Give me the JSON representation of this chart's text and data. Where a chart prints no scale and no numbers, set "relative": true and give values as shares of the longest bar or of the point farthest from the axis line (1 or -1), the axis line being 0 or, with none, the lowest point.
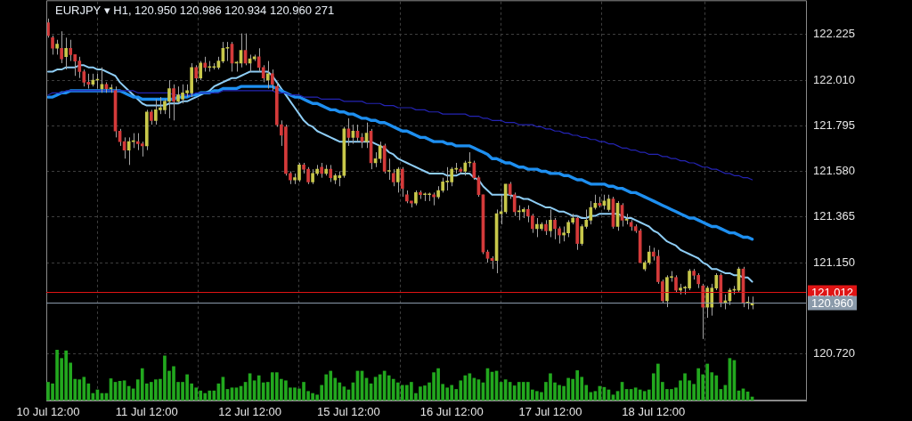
{
  "chart_data": [
    {
      "type": "candlestick",
      "title": "EURJPY ▾ H1, 120.950 120.986 120.934 120.960 271",
      "categories": [
        "10 Jul 12:00",
        null,
        null,
        null,
        null,
        null,
        null,
        null,
        null,
        null,
        null,
        null,
        null,
        null,
        null,
        null,
        null,
        null,
        null,
        null,
        null,
        null,
        "11 Jul 12:00",
        null,
        null,
        null,
        null,
        null,
        null,
        null,
        null,
        null,
        null,
        null,
        null,
        null,
        null,
        null,
        null,
        null,
        null,
        null,
        null,
        null,
        null,
        "12 Jul 12:00",
        null,
        null,
        null,
        null,
        null,
        null,
        null,
        null,
        null,
        null,
        null,
        null,
        null,
        null,
        null,
        null,
        null,
        null,
        null,
        null,
        null,
        "15 Jul 12:00",
        null,
        null,
        null,
        null,
        null,
        null,
        null,
        null,
        null,
        null,
        null,
        null,
        null,
        null,
        null,
        null,
        null,
        null,
        null,
        null,
        null,
        null,
        "16 Jul 12:00",
        null,
        null,
        null,
        null,
        null,
        null,
        null,
        null,
        null,
        null,
        null,
        null,
        null,
        null,
        null,
        null,
        null,
        null,
        null,
        null,
        null,
        "17 Jul 12:00",
        null,
        null,
        null,
        null,
        null,
        null,
        null,
        null,
        null,
        null,
        null,
        null,
        null,
        null,
        null,
        null,
        null,
        null,
        null,
        null,
        null,
        null,
        "18 Jul 12:00",
        null,
        null,
        null,
        null,
        null,
        null,
        null,
        null,
        null,
        null,
        null,
        null,
        null,
        null,
        null,
        null,
        null,
        null,
        null,
        null,
        null,
        null
      ],
      "ohlc": [
        [
          122.28,
          122.3,
          122.21,
          122.22
        ],
        [
          122.21,
          122.22,
          122.13,
          122.16
        ],
        [
          122.16,
          122.2,
          122.13,
          122.18
        ],
        [
          122.16,
          122.24,
          122.09,
          122.11
        ],
        [
          122.12,
          122.21,
          122.06,
          122.16
        ],
        [
          122.16,
          122.2,
          122.1,
          122.13
        ],
        [
          122.13,
          122.13,
          122.03,
          122.1
        ],
        [
          122.1,
          122.12,
          122.02,
          122.05
        ],
        [
          122.05,
          122.06,
          121.98,
          122.0
        ],
        [
          122.0,
          122.04,
          121.97,
          121.99
        ],
        [
          121.99,
          122.04,
          121.98,
          122.01
        ],
        [
          122.01,
          122.04,
          121.97,
          122.01
        ],
        [
          121.97,
          122.07,
          121.95,
          121.99
        ],
        [
          121.99,
          122.0,
          121.95,
          121.97
        ],
        [
          121.97,
          121.99,
          121.95,
          121.97
        ],
        [
          121.96,
          121.98,
          121.74,
          121.77
        ],
        [
          121.77,
          121.78,
          121.7,
          121.72
        ],
        [
          121.72,
          121.74,
          121.64,
          121.68
        ],
        [
          121.68,
          121.74,
          121.61,
          121.72
        ],
        [
          121.72,
          121.76,
          121.69,
          121.72
        ],
        [
          121.72,
          121.76,
          121.68,
          121.71
        ],
        [
          121.71,
          121.72,
          121.65,
          121.7
        ],
        [
          121.7,
          121.87,
          121.68,
          121.86
        ],
        [
          121.86,
          121.87,
          121.8,
          121.82
        ],
        [
          121.82,
          121.92,
          121.8,
          121.87
        ],
        [
          121.87,
          121.93,
          121.85,
          121.88
        ],
        [
          121.87,
          121.92,
          121.85,
          121.91
        ],
        [
          121.91,
          122.01,
          121.83,
          121.97
        ],
        [
          121.97,
          121.99,
          121.82,
          121.91
        ],
        [
          121.91,
          121.98,
          121.9,
          121.94
        ],
        [
          121.92,
          121.99,
          121.9,
          121.95
        ],
        [
          121.95,
          121.99,
          121.93,
          121.96
        ],
        [
          121.95,
          122.09,
          121.93,
          122.07
        ],
        [
          122.07,
          122.08,
          122.0,
          122.02
        ],
        [
          122.02,
          122.1,
          122.01,
          122.09
        ],
        [
          122.09,
          122.12,
          122.05,
          122.07
        ],
        [
          122.07,
          122.1,
          122.05,
          122.07
        ],
        [
          122.07,
          122.09,
          122.06,
          122.07
        ],
        [
          122.07,
          122.12,
          122.06,
          122.1
        ],
        [
          122.1,
          122.19,
          122.09,
          122.16
        ],
        [
          122.16,
          122.19,
          122.1,
          122.16
        ],
        [
          122.18,
          122.19,
          122.05,
          122.09
        ],
        [
          122.09,
          122.1,
          122.05,
          122.09
        ],
        [
          122.09,
          122.23,
          122.07,
          122.15
        ],
        [
          122.15,
          122.23,
          122.08,
          122.09
        ],
        [
          122.09,
          122.13,
          122.05,
          122.11
        ],
        [
          122.11,
          122.13,
          122.1,
          122.12
        ],
        [
          122.12,
          122.16,
          122.05,
          122.07
        ],
        [
          122.07,
          122.08,
          122.0,
          122.02
        ],
        [
          122.01,
          122.1,
          121.97,
          122.04
        ],
        [
          122.04,
          122.06,
          121.96,
          121.99
        ],
        [
          121.98,
          122.0,
          121.79,
          121.8
        ],
        [
          121.8,
          121.82,
          121.7,
          121.75
        ],
        [
          121.79,
          121.8,
          121.56,
          121.57
        ],
        [
          121.57,
          121.58,
          121.52,
          121.54
        ],
        [
          121.54,
          121.57,
          121.52,
          121.55
        ],
        [
          121.54,
          121.62,
          121.53,
          121.61
        ],
        [
          121.61,
          121.62,
          121.57,
          121.59
        ],
        [
          121.59,
          121.6,
          121.52,
          121.53
        ],
        [
          121.53,
          121.59,
          121.52,
          121.57
        ],
        [
          121.57,
          121.61,
          121.56,
          121.59
        ],
        [
          121.6,
          121.62,
          121.55,
          121.57
        ],
        [
          121.57,
          121.61,
          121.56,
          121.59
        ],
        [
          121.59,
          121.61,
          121.53,
          121.55
        ],
        [
          121.54,
          121.57,
          121.52,
          121.56
        ],
        [
          121.55,
          121.58,
          121.51,
          121.56
        ],
        [
          121.56,
          121.79,
          121.55,
          121.78
        ],
        [
          121.78,
          121.83,
          121.7,
          121.74
        ],
        [
          121.74,
          121.8,
          121.71,
          121.77
        ],
        [
          121.77,
          121.8,
          121.72,
          121.74
        ],
        [
          121.74,
          121.76,
          121.69,
          121.72
        ],
        [
          121.72,
          121.81,
          121.69,
          121.76
        ],
        [
          121.77,
          121.78,
          121.59,
          121.62
        ],
        [
          121.62,
          121.67,
          121.6,
          121.64
        ],
        [
          121.64,
          121.72,
          121.62,
          121.7
        ],
        [
          121.7,
          121.71,
          121.57,
          121.58
        ],
        [
          121.58,
          121.64,
          121.54,
          121.58
        ],
        [
          121.57,
          121.59,
          121.51,
          121.53
        ],
        [
          121.53,
          121.6,
          121.48,
          121.59
        ],
        [
          121.59,
          121.6,
          121.46,
          121.5
        ],
        [
          121.47,
          121.49,
          121.43,
          121.44
        ],
        [
          121.44,
          121.44,
          121.41,
          121.43
        ],
        [
          121.43,
          121.49,
          121.42,
          121.48
        ],
        [
          121.48,
          121.49,
          121.45,
          121.47
        ],
        [
          121.47,
          121.48,
          121.44,
          121.47
        ],
        [
          121.47,
          121.48,
          121.44,
          121.47
        ],
        [
          121.47,
          121.48,
          121.42,
          121.46
        ],
        [
          121.46,
          121.51,
          121.45,
          121.49
        ],
        [
          121.49,
          121.55,
          121.48,
          121.53
        ],
        [
          121.53,
          121.6,
          121.49,
          121.53
        ],
        [
          121.53,
          121.6,
          121.51,
          121.59
        ],
        [
          121.59,
          121.62,
          121.57,
          121.59
        ],
        [
          121.59,
          121.6,
          121.57,
          121.58
        ],
        [
          121.58,
          121.63,
          121.56,
          121.62
        ],
        [
          121.62,
          121.67,
          121.6,
          121.62
        ],
        [
          121.62,
          121.63,
          121.54,
          121.55
        ],
        [
          121.55,
          121.56,
          121.46,
          121.47
        ],
        [
          121.47,
          121.47,
          121.19,
          121.2
        ],
        [
          121.2,
          121.21,
          121.15,
          121.17
        ],
        [
          121.17,
          121.18,
          121.12,
          121.16
        ],
        [
          121.16,
          121.4,
          121.1,
          121.38
        ],
        [
          121.38,
          121.47,
          121.33,
          121.39
        ],
        [
          121.39,
          121.52,
          121.38,
          121.52
        ],
        [
          121.52,
          121.53,
          121.45,
          121.47
        ],
        [
          121.47,
          121.48,
          121.37,
          121.39
        ],
        [
          121.39,
          121.42,
          121.35,
          121.39
        ],
        [
          121.39,
          121.41,
          121.36,
          121.4
        ],
        [
          121.4,
          121.42,
          121.34,
          121.37
        ],
        [
          121.37,
          121.38,
          121.29,
          121.31
        ],
        [
          121.31,
          121.36,
          121.27,
          121.33
        ],
        [
          121.31,
          121.34,
          121.3,
          121.33
        ],
        [
          121.33,
          121.35,
          121.28,
          121.3
        ],
        [
          121.3,
          121.4,
          121.27,
          121.35
        ],
        [
          121.35,
          121.36,
          121.26,
          121.31
        ],
        [
          121.31,
          121.32,
          121.24,
          121.28
        ],
        [
          121.28,
          121.32,
          121.25,
          121.29
        ],
        [
          121.29,
          121.35,
          121.27,
          121.34
        ],
        [
          121.34,
          121.38,
          121.33,
          121.36
        ],
        [
          121.36,
          121.37,
          121.21,
          121.24
        ],
        [
          121.24,
          121.33,
          121.23,
          121.32
        ],
        [
          121.32,
          121.4,
          121.31,
          121.35
        ],
        [
          121.35,
          121.44,
          121.33,
          121.41
        ],
        [
          121.41,
          121.47,
          121.4,
          121.43
        ],
        [
          121.43,
          121.46,
          121.41,
          121.42
        ],
        [
          121.42,
          121.47,
          121.4,
          121.44
        ],
        [
          121.4,
          121.47,
          121.39,
          121.45
        ],
        [
          121.45,
          121.46,
          121.31,
          121.32
        ],
        [
          121.32,
          121.44,
          121.3,
          121.43
        ],
        [
          121.42,
          121.43,
          121.32,
          121.35
        ],
        [
          121.35,
          121.38,
          121.33,
          121.35
        ],
        [
          121.34,
          121.35,
          121.3,
          121.32
        ],
        [
          121.32,
          121.33,
          121.29,
          121.3
        ],
        [
          121.3,
          121.31,
          121.15,
          121.15
        ],
        [
          121.12,
          121.16,
          121.11,
          121.15
        ],
        [
          121.15,
          121.23,
          121.14,
          121.2
        ],
        [
          121.2,
          121.22,
          121.16,
          121.18
        ],
        [
          121.18,
          121.21,
          121.05,
          121.06
        ],
        [
          121.06,
          121.07,
          120.96,
          120.97
        ],
        [
          120.97,
          121.09,
          120.94,
          121.08
        ],
        [
          121.08,
          121.11,
          121.06,
          121.08
        ],
        [
          121.08,
          121.09,
          121.01,
          121.02
        ],
        [
          121.02,
          121.05,
          121.0,
          121.03
        ],
        [
          121.03,
          121.04,
          121.0,
          121.03
        ],
        [
          121.03,
          121.12,
          121.02,
          121.11
        ],
        [
          121.11,
          121.12,
          121.07,
          121.09
        ],
        [
          121.09,
          121.1,
          121.03,
          121.05
        ],
        [
          121.04,
          121.05,
          120.79,
          120.94
        ],
        [
          120.94,
          121.04,
          120.89,
          121.03
        ],
        [
          120.94,
          121.05,
          120.9,
          121.03
        ],
        [
          121.03,
          121.1,
          121.02,
          121.09
        ],
        [
          121.09,
          121.1,
          120.94,
          120.96
        ],
        [
          120.96,
          121.0,
          120.93,
          120.97
        ],
        [
          120.97,
          121.03,
          120.95,
          121.02
        ],
        [
          121.02,
          121.04,
          121.0,
          121.02
        ],
        [
          121.02,
          121.13,
          121.01,
          121.12
        ],
        [
          121.12,
          121.13,
          120.94,
          120.96
        ],
        [
          120.96,
          120.99,
          120.93,
          120.96
        ],
        [
          120.95,
          120.99,
          120.93,
          120.96
        ]
      ],
      "colors": [
        "#d43a3a",
        "#d43a3a",
        "#c8c84a",
        "#d43a3a",
        "#c8c84a",
        "#d43a3a",
        "#d43a3a",
        "#d43a3a",
        "#d43a3a",
        "#d43a3a",
        "#c8c84a",
        "#c8c84a",
        "#c8c84a",
        "#d43a3a",
        "#c8c84a",
        "#d43a3a",
        "#d43a3a",
        "#d43a3a",
        "#c8c84a",
        "#c8c84a",
        "#d43a3a",
        "#d43a3a",
        "#c8c84a",
        "#d43a3a",
        "#c8c84a",
        "#c8c84a",
        "#c8c84a",
        "#c8c84a",
        "#d43a3a",
        "#c8c84a",
        "#c8c84a",
        "#c8c84a",
        "#c8c84a",
        "#d43a3a",
        "#c8c84a",
        "#d43a3a",
        "#c8c84a",
        "#c8c84a",
        "#c8c84a",
        "#c8c84a",
        "#c8c84a",
        "#d43a3a",
        "#c8c84a",
        "#c8c84a",
        "#d43a3a",
        "#c8c84a",
        "#c8c84a",
        "#d43a3a",
        "#d43a3a",
        "#c8c84a",
        "#d43a3a",
        "#d43a3a",
        "#d43a3a",
        "#d43a3a",
        "#d43a3a",
        "#c8c84a",
        "#c8c84a",
        "#d43a3a",
        "#d43a3a",
        "#c8c84a",
        "#c8c84a",
        "#d43a3a",
        "#c8c84a",
        "#d43a3a",
        "#c8c84a",
        "#c8c84a",
        "#c8c84a",
        "#d43a3a",
        "#c8c84a",
        "#d43a3a",
        "#d43a3a",
        "#c8c84a",
        "#d43a3a",
        "#c8c84a",
        "#c8c84a",
        "#d43a3a",
        "#c8c84a",
        "#d43a3a",
        "#c8c84a",
        "#d43a3a",
        "#d43a3a",
        "#d43a3a",
        "#c8c84a",
        "#d43a3a",
        "#c8c84a",
        "#c8c84a",
        "#d43a3a",
        "#c8c84a",
        "#c8c84a",
        "#c8c84a",
        "#c8c84a",
        "#c8c84a",
        "#d43a3a",
        "#c8c84a",
        "#c8c84a",
        "#d43a3a",
        "#d43a3a",
        "#d43a3a",
        "#d43a3a",
        "#d43a3a",
        "#c8c84a",
        "#c8c84a",
        "#c8c84a",
        "#d43a3a",
        "#d43a3a",
        "#c8c84a",
        "#c8c84a",
        "#d43a3a",
        "#d43a3a",
        "#c8c84a",
        "#c8c84a",
        "#d43a3a",
        "#c8c84a",
        "#d43a3a",
        "#d43a3a",
        "#c8c84a",
        "#c8c84a",
        "#c8c84a",
        "#d43a3a",
        "#c8c84a",
        "#c8c84a",
        "#c8c84a",
        "#c8c84a",
        "#d43a3a",
        "#c8c84a",
        "#c8c84a",
        "#d43a3a",
        "#c8c84a",
        "#d43a3a",
        "#c8c84a",
        "#d43a3a",
        "#d43a3a",
        "#d43a3a",
        "#c8c84a",
        "#c8c84a",
        "#d43a3a",
        "#d43a3a",
        "#d43a3a",
        "#c8c84a",
        "#c8c84a",
        "#d43a3a",
        "#c8c84a",
        "#c8c84a",
        "#c8c84a",
        "#d43a3a",
        "#d43a3a",
        "#d43a3a",
        "#c8c84a",
        "#c8c84a",
        "#c8c84a",
        "#d43a3a",
        "#c8c84a",
        "#c8c84a",
        "#c8c84a",
        "#c8c84a",
        "#d43a3a",
        "#c8c84a",
        "#c8c84a"
      ],
      "series": [
        {
          "type": "line",
          "color": "#8ecdf5",
          "values": [
            122.05,
            122.05,
            122.06,
            122.06,
            122.07,
            122.07,
            122.07,
            122.08,
            122.08,
            122.07,
            122.07,
            122.06,
            122.06,
            122.05,
            122.04,
            122.03,
            122.0,
            121.98,
            121.96,
            121.94,
            121.92,
            121.9,
            121.89,
            121.89,
            121.89,
            121.89,
            121.89,
            121.9,
            121.9,
            121.9,
            121.91,
            121.91,
            121.92,
            121.93,
            121.94,
            121.95,
            121.96,
            121.98,
            121.99,
            122.0,
            122.01,
            122.02,
            122.02,
            122.03,
            122.04,
            122.05,
            122.05,
            122.05,
            122.05,
            122.05,
            122.03,
            122.0,
            121.97,
            121.94,
            121.91,
            121.88,
            121.85,
            121.82,
            121.8,
            121.79,
            121.77,
            121.76,
            121.75,
            121.74,
            121.73,
            121.72,
            121.72,
            121.72,
            121.72,
            121.72,
            121.72,
            121.72,
            121.72,
            121.71,
            121.7,
            121.69,
            121.67,
            121.66,
            121.64,
            121.63,
            121.62,
            121.61,
            121.6,
            121.59,
            121.58,
            121.57,
            121.57,
            121.57,
            121.57,
            121.56,
            121.56,
            121.56,
            121.57,
            121.57,
            121.57,
            121.55,
            121.54,
            121.51,
            121.49,
            121.47,
            121.47,
            121.47,
            121.47,
            121.47,
            121.46,
            121.46,
            121.45,
            121.45,
            121.44,
            121.43,
            121.42,
            121.41,
            121.41,
            121.4,
            121.39,
            121.39,
            121.38,
            121.37,
            121.37,
            121.36,
            121.36,
            121.37,
            121.37,
            121.38,
            121.38,
            121.38,
            121.38,
            121.38,
            121.37,
            121.36,
            121.36,
            121.35,
            121.34,
            121.33,
            121.32,
            121.3,
            121.29,
            121.27,
            121.25,
            121.24,
            121.23,
            121.21,
            121.2,
            121.19,
            121.18,
            121.17,
            121.15,
            121.14,
            121.12,
            121.12,
            121.11,
            121.1,
            121.1,
            121.09,
            121.09,
            121.08,
            121.08,
            121.06
          ]
        },
        {
          "type": "line",
          "color": "#1e8ff0",
          "values": [
            121.93,
            121.93,
            121.94,
            121.95,
            121.95,
            121.96,
            121.96,
            121.96,
            121.96,
            121.96,
            121.96,
            121.96,
            121.96,
            121.96,
            121.96,
            121.96,
            121.96,
            121.95,
            121.94,
            121.93,
            121.93,
            121.92,
            121.92,
            121.92,
            121.92,
            121.92,
            121.92,
            121.92,
            121.92,
            121.93,
            121.93,
            121.93,
            121.94,
            121.94,
            121.95,
            121.95,
            121.95,
            121.96,
            121.96,
            121.97,
            121.97,
            121.97,
            121.97,
            121.98,
            121.98,
            121.98,
            121.98,
            121.98,
            121.98,
            121.98,
            121.98,
            121.97,
            121.96,
            121.95,
            121.94,
            121.93,
            121.93,
            121.92,
            121.91,
            121.9,
            121.9,
            121.89,
            121.88,
            121.87,
            121.87,
            121.86,
            121.86,
            121.85,
            121.85,
            121.84,
            121.83,
            121.83,
            121.82,
            121.82,
            121.81,
            121.81,
            121.8,
            121.79,
            121.78,
            121.77,
            121.77,
            121.76,
            121.75,
            121.74,
            121.74,
            121.73,
            121.72,
            121.72,
            121.72,
            121.71,
            121.71,
            121.7,
            121.7,
            121.7,
            121.7,
            121.69,
            121.68,
            121.67,
            121.66,
            121.64,
            121.64,
            121.63,
            121.62,
            121.62,
            121.61,
            121.6,
            121.6,
            121.59,
            121.59,
            121.59,
            121.58,
            121.58,
            121.57,
            121.57,
            121.57,
            121.56,
            121.56,
            121.55,
            121.54,
            121.54,
            121.53,
            121.52,
            121.52,
            121.52,
            121.52,
            121.51,
            121.51,
            121.5,
            121.5,
            121.49,
            121.48,
            121.48,
            121.47,
            121.46,
            121.45,
            121.44,
            121.43,
            121.42,
            121.41,
            121.4,
            121.39,
            121.38,
            121.37,
            121.36,
            121.36,
            121.35,
            121.34,
            121.33,
            121.32,
            121.32,
            121.31,
            121.3,
            121.29,
            121.29,
            121.28,
            121.27,
            121.27,
            121.26
          ]
        },
        {
          "type": "line",
          "color": "#2424b4",
          "values": [
            121.94,
            121.95,
            121.95,
            121.95,
            121.96,
            121.96,
            121.96,
            121.96,
            121.96,
            121.96,
            121.96,
            121.96,
            121.96,
            121.96,
            121.96,
            121.96,
            121.96,
            121.96,
            121.96,
            121.96,
            121.95,
            121.95,
            121.95,
            121.95,
            121.95,
            121.95,
            121.95,
            121.95,
            121.94,
            121.94,
            121.94,
            121.94,
            121.94,
            121.95,
            121.95,
            121.95,
            121.95,
            121.95,
            121.95,
            121.96,
            121.96,
            121.96,
            121.96,
            121.96,
            121.96,
            121.96,
            121.96,
            121.96,
            121.96,
            121.96,
            121.96,
            121.95,
            121.95,
            121.95,
            121.94,
            121.94,
            121.94,
            121.93,
            121.93,
            121.93,
            121.93,
            121.92,
            121.92,
            121.92,
            121.92,
            121.92,
            121.91,
            121.91,
            121.91,
            121.91,
            121.91,
            121.9,
            121.9,
            121.9,
            121.9,
            121.89,
            121.89,
            121.89,
            121.88,
            121.88,
            121.88,
            121.88,
            121.87,
            121.87,
            121.87,
            121.86,
            121.86,
            121.86,
            121.85,
            121.85,
            121.85,
            121.85,
            121.85,
            121.85,
            121.84,
            121.84,
            121.84,
            121.83,
            121.83,
            121.82,
            121.82,
            121.82,
            121.81,
            121.81,
            121.81,
            121.8,
            121.8,
            121.8,
            121.8,
            121.79,
            121.79,
            121.78,
            121.78,
            121.77,
            121.77,
            121.76,
            121.76,
            121.75,
            121.75,
            121.74,
            121.74,
            121.73,
            121.73,
            121.72,
            121.72,
            121.71,
            121.71,
            121.7,
            121.69,
            121.69,
            121.68,
            121.68,
            121.67,
            121.67,
            121.66,
            121.66,
            121.66,
            121.65,
            121.65,
            121.64,
            121.64,
            121.63,
            121.63,
            121.62,
            121.62,
            121.61,
            121.6,
            121.6,
            121.59,
            121.59,
            121.58,
            121.57,
            121.57,
            121.56,
            121.56,
            121.55,
            121.55,
            121.54
          ]
        }
      ],
      "ylim": [
        120.5,
        122.38
      ],
      "yticks": [
        {
          "value": 120.72,
          "label": "120.720"
        },
        {
          "value": 121.15,
          "label": "121.150"
        },
        121.365,
        {
          "value": 121.58,
          "label": "121.580"
        },
        121.795,
        {
          "value": 122.01,
          "label": "122.010"
        },
        122.225
      ],
      "grid": true,
      "ref_lines": [
        {
          "axis": "y",
          "value": 121.012,
          "label": "121.012",
          "color": "#e01414"
        },
        {
          "axis": "y",
          "value": 120.96,
          "label": "120.960",
          "color": "#8a9aaa"
        }
      ]
    },
    {
      "type": "bar",
      "relative": true,
      "color": "#22a81e",
      "categories": [
        null,
        null,
        null,
        null,
        null,
        null,
        null,
        null,
        null,
        null,
        null,
        null,
        null,
        null,
        null,
        null,
        null,
        null,
        null,
        null,
        null,
        null,
        null,
        null,
        null,
        null,
        null,
        null,
        null,
        null,
        null,
        null,
        null,
        null,
        null,
        null,
        null,
        null,
        null,
        null,
        null,
        null,
        null,
        null,
        null,
        null,
        null,
        null,
        null,
        null,
        null,
        null,
        null,
        null,
        null,
        null,
        null,
        null,
        null,
        null,
        null,
        null,
        null,
        null,
        null,
        null,
        null,
        null,
        null,
        null,
        null,
        null,
        null,
        null,
        null,
        null,
        null,
        null,
        null,
        null,
        null,
        null,
        null,
        null,
        null,
        null,
        null,
        null,
        null,
        null,
        null,
        null,
        null,
        null,
        null,
        null,
        null,
        null,
        null,
        null,
        null,
        null,
        null,
        null,
        null,
        null,
        null,
        null,
        null,
        null,
        null,
        null,
        null,
        null,
        null,
        null,
        null,
        null,
        null,
        null,
        null,
        null,
        null,
        null,
        null,
        null,
        null,
        null,
        null,
        null,
        null,
        null,
        null,
        null,
        null,
        null,
        null,
        null,
        null,
        null,
        null,
        null,
        null,
        null,
        null,
        null,
        null,
        null,
        null,
        null,
        null,
        null,
        null,
        null,
        null,
        null,
        null,
        null
      ],
      "values": [
        0.36,
        0.33,
        1,
        0.83,
        0.98,
        0.74,
        0.42,
        0.41,
        0.46,
        0.33,
        0.14,
        0.21,
        0.14,
        0.14,
        0.43,
        0.36,
        0.38,
        0.39,
        0.28,
        0.23,
        0.41,
        0.63,
        0.33,
        0.36,
        0.41,
        0.42,
        0.88,
        0.58,
        0.67,
        0.36,
        0.36,
        0.51,
        0.33,
        0.25,
        0.19,
        0.14,
        0.19,
        0.19,
        0.33,
        0.46,
        0.22,
        0.25,
        0.25,
        0.28,
        0.36,
        0.53,
        0.39,
        0.49,
        0.35,
        0.36,
        0.55,
        0.55,
        0.42,
        0.39,
        0.25,
        0.25,
        0.23,
        0.36,
        0.18,
        0.14,
        0.11,
        0.3,
        0.51,
        0.58,
        0.44,
        0.35,
        0.27,
        0.21,
        0.35,
        0.58,
        0.58,
        0.44,
        0.33,
        0.46,
        0.51,
        0.58,
        0.49,
        0.42,
        0.35,
        0.3,
        0.3,
        0.36,
        0.14,
        0.27,
        0.29,
        0.35,
        0.55,
        0.63,
        0.32,
        0.25,
        0.3,
        0.22,
        0.39,
        0.49,
        0.53,
        0.44,
        0.41,
        0.35,
        0.63,
        0.56,
        0.58,
        0.36,
        0.41,
        0.36,
        0.29,
        0.36,
        0.36,
        0.36,
        0.21,
        0.18,
        0.16,
        0.36,
        0.53,
        0.35,
        0.3,
        0.28,
        0.44,
        0.42,
        0.59,
        0.46,
        0.3,
        0.16,
        0.18,
        0.28,
        0.26,
        0.21,
        0.11,
        0.18,
        0.36,
        0.22,
        0.22,
        0.25,
        0.21,
        0.18,
        0.21,
        0.53,
        0.72,
        0.36,
        0.22,
        0.22,
        0.25,
        0.39,
        0.53,
        0.39,
        0.32,
        0.63,
        0.51,
        0.72,
        0.55,
        0.49,
        0.22,
        0.3,
        0.83,
        0.79,
        0.19,
        0.23,
        0.17,
        0.07
      ]
    }
  ]
}
